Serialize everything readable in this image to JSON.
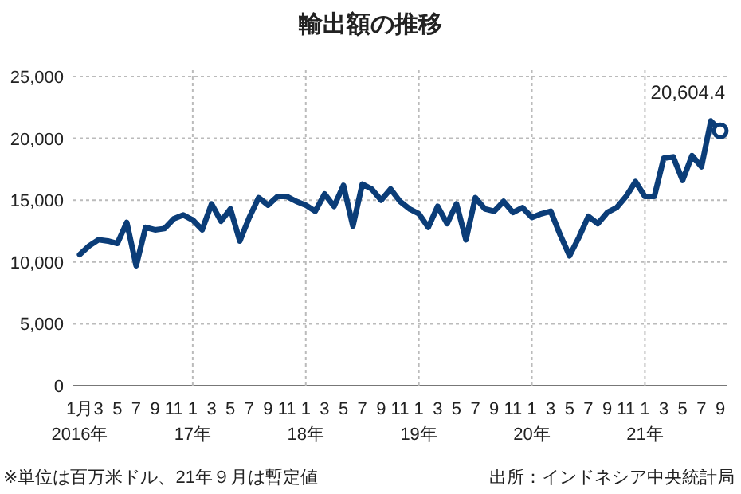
{
  "chart_data": {
    "type": "line",
    "title": "輸出額の推移",
    "categories": [
      "1月\n2016年",
      null,
      "3",
      null,
      "5",
      null,
      "7",
      null,
      "9",
      null,
      "11",
      null,
      "1\n17年",
      null,
      "3",
      null,
      "5",
      null,
      "7",
      null,
      "9",
      null,
      "11",
      null,
      "1\n18年",
      null,
      "3",
      null,
      "5",
      null,
      "7",
      null,
      "9",
      null,
      "11",
      null,
      "1\n19年",
      null,
      "3",
      null,
      "5",
      null,
      "7",
      null,
      "9",
      null,
      "11",
      null,
      "1\n20年",
      null,
      "3",
      null,
      "5",
      null,
      "7",
      null,
      "9",
      null,
      "11",
      null,
      "1\n21年",
      null,
      "3",
      null,
      "5",
      null,
      "7",
      null,
      "9"
    ],
    "series": [
      {
        "color": "#0b3d78",
        "values": [
          10600,
          11300,
          11800,
          11700,
          11500,
          13200,
          9700,
          12800,
          12600,
          12700,
          13500,
          13800,
          13400,
          12600,
          14700,
          13300,
          14300,
          11700,
          13600,
          15200,
          14600,
          15300,
          15300,
          14900,
          14600,
          14100,
          15500,
          14500,
          16200,
          12900,
          16300,
          15900,
          15000,
          15900,
          14900,
          14300,
          13900,
          12800,
          14500,
          13100,
          14700,
          11800,
          15200,
          14300,
          14100,
          14900,
          14000,
          14400,
          13600,
          13900,
          14100,
          12200,
          10500,
          12000,
          13700,
          13100,
          14000,
          14400,
          15300,
          16500,
          15300,
          15300,
          18400,
          18500,
          16600,
          18600,
          17700,
          21400,
          20604.4
        ],
        "value_labels": [
          null,
          null,
          null,
          null,
          null,
          null,
          null,
          null,
          null,
          null,
          null,
          null,
          null,
          null,
          null,
          null,
          null,
          null,
          null,
          null,
          null,
          null,
          null,
          null,
          null,
          null,
          null,
          null,
          null,
          null,
          null,
          null,
          null,
          null,
          null,
          null,
          null,
          null,
          null,
          null,
          null,
          null,
          null,
          null,
          null,
          null,
          null,
          null,
          null,
          null,
          null,
          null,
          null,
          null,
          null,
          null,
          null,
          null,
          null,
          null,
          null,
          null,
          null,
          null,
          null,
          null,
          null,
          null,
          "20,604.4"
        ]
      }
    ],
    "ylim": [
      0,
      25000
    ],
    "yticks": [
      {
        "value": 0,
        "label": "0"
      },
      {
        "value": 5000,
        "label": "5,000"
      },
      {
        "value": 10000,
        "label": "10,000"
      },
      {
        "value": 15000,
        "label": "15,000"
      },
      {
        "value": 20000,
        "label": "20,000"
      },
      {
        "value": 25000,
        "label": "25,000"
      }
    ],
    "grid": true,
    "marker": "none",
    "line_style": "solid",
    "annotations": [
      "※単位は百万米ドル、21年９月は暫定値",
      "出所：インドネシア中央統計局"
    ]
  }
}
